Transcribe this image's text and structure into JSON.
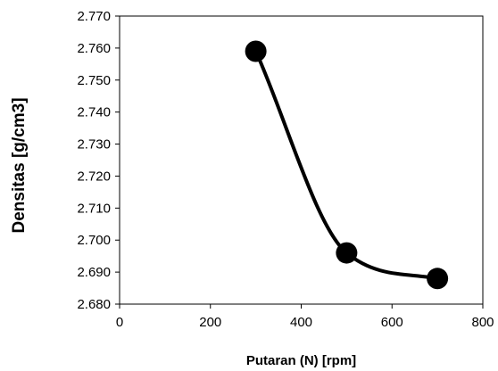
{
  "chart_data": {
    "type": "line",
    "title": "",
    "xlabel": "Putaran (N) [rpm]",
    "ylabel": "Densitas  [g/cm3]",
    "xlim": [
      0,
      800
    ],
    "ylim": [
      2.68,
      2.77
    ],
    "xticks": [
      "0",
      "200",
      "400",
      "600",
      "800"
    ],
    "yticks": [
      "2.680",
      "2.690",
      "2.700",
      "2.710",
      "2.720",
      "2.730",
      "2.740",
      "2.750",
      "2.760",
      "2.770"
    ],
    "grid": false,
    "legend": "none",
    "series": [
      {
        "x": [
          300,
          500,
          700
        ],
        "y": [
          2.759,
          2.696,
          2.688
        ],
        "smooth": true,
        "marker": "circle"
      }
    ],
    "colors": {
      "line": "#000000",
      "marker": "#000000",
      "axis": "#000000"
    }
  }
}
